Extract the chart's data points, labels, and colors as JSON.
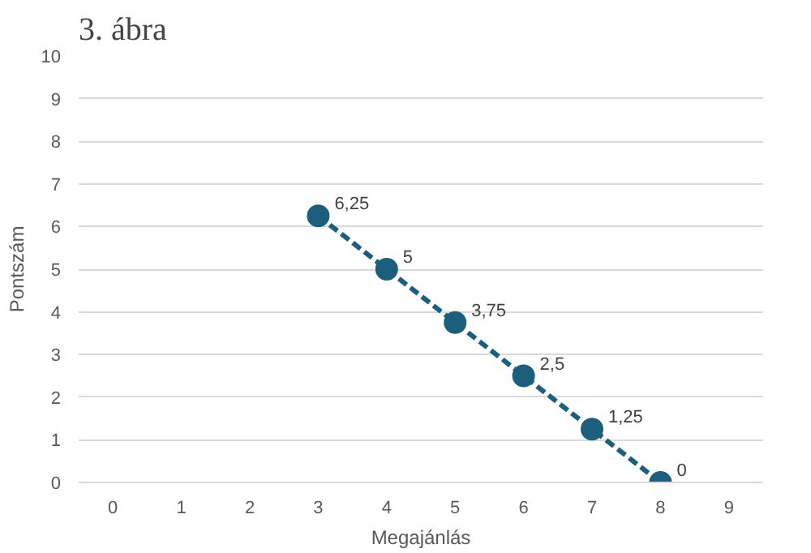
{
  "chart_data": {
    "type": "line",
    "title": "3. ábra",
    "xlabel": "Megajánlás",
    "ylabel": "Pontszám",
    "x": [
      3,
      4,
      5,
      6,
      7,
      8
    ],
    "series": [
      {
        "color": "#1c5f7c",
        "values": [
          6.25,
          5,
          3.75,
          2.5,
          1.25,
          0
        ],
        "value_labels": [
          "6,25",
          "5",
          "3,75",
          "2,5",
          "1,25",
          "0"
        ]
      }
    ],
    "xlim": [
      -0.5,
      9.5
    ],
    "xticks": [
      0,
      1,
      2,
      3,
      4,
      5,
      6,
      7,
      8,
      9
    ],
    "ylim": [
      0,
      10
    ],
    "yticks": [
      0,
      1,
      2,
      3,
      4,
      5,
      6,
      7,
      8,
      9,
      10
    ],
    "grid": "y",
    "marker": "circle",
    "line_style": "dashed"
  }
}
